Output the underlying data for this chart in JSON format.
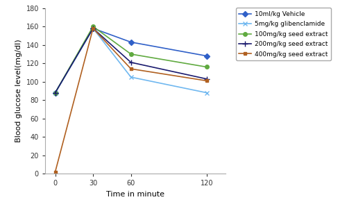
{
  "time": [
    0,
    30,
    60,
    120
  ],
  "series": [
    {
      "label": "10ml/kg Vehicle",
      "values": [
        88,
        158,
        143,
        128
      ],
      "color": "#3060c8",
      "marker": "D",
      "linestyle": "-",
      "linewidth": 1.2,
      "markersize": 4
    },
    {
      "label": "5mg/kg glibenclamide",
      "values": [
        88,
        158,
        105,
        88
      ],
      "color": "#70b8f0",
      "marker": "x",
      "linestyle": "-",
      "linewidth": 1.2,
      "markersize": 5
    },
    {
      "label": "100mg/kg seed extract",
      "values": [
        88,
        160,
        130,
        116
      ],
      "color": "#60aa40",
      "marker": "o",
      "linestyle": "-",
      "linewidth": 1.2,
      "markersize": 4
    },
    {
      "label": "200mg/kg seed extract",
      "values": [
        88,
        158,
        121,
        103
      ],
      "color": "#1a1a6e",
      "marker": "+",
      "linestyle": "-",
      "linewidth": 1.2,
      "markersize": 6
    },
    {
      "label": "400mg/kg seed extract",
      "values": [
        2,
        158,
        114,
        101
      ],
      "color": "#b06020",
      "marker": "s",
      "linestyle": "-",
      "linewidth": 1.2,
      "markersize": 3
    }
  ],
  "xlabel": "Time in minute",
  "ylabel": "Blood glucose level(mg/dl)",
  "ylim": [
    0,
    180
  ],
  "xlim": [
    -8,
    135
  ],
  "yticks": [
    0,
    20,
    40,
    60,
    80,
    100,
    120,
    140,
    160,
    180
  ],
  "xticks": [
    0,
    30,
    60,
    120
  ],
  "background_color": "#ffffff"
}
